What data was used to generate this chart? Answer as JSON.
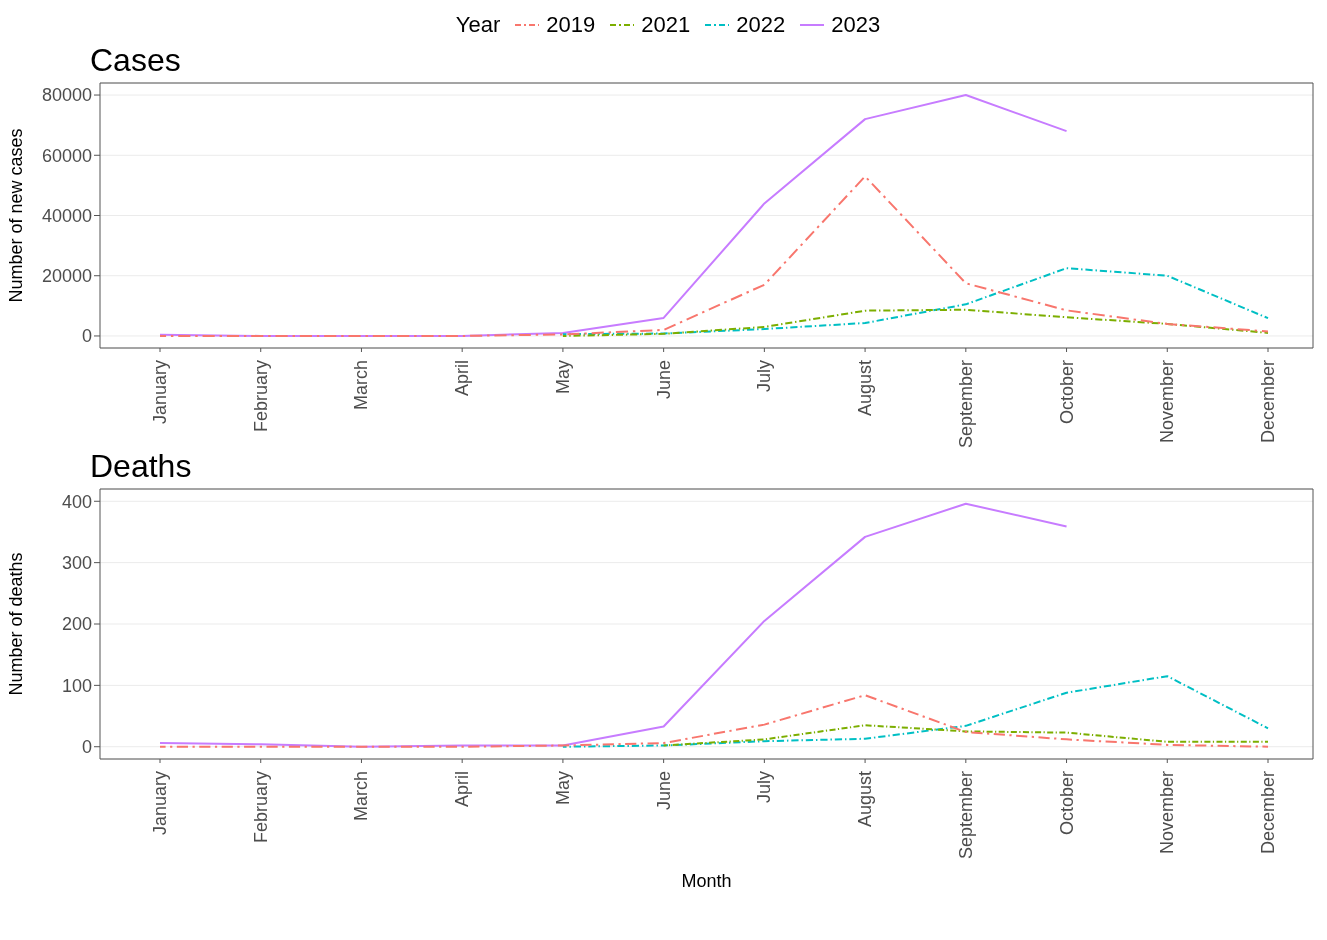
{
  "chart_data": [
    {
      "type": "line",
      "title": "Cases",
      "ylabel": "Number of new cases",
      "legend_title": "Year",
      "legend": "top",
      "categories": [
        "January",
        "February",
        "March",
        "April",
        "May",
        "June",
        "July",
        "August",
        "September",
        "October",
        "November",
        "December"
      ],
      "ylim": [
        -4000,
        84000
      ],
      "yticks": [
        0,
        20000,
        40000,
        60000,
        80000
      ],
      "grid": "y",
      "series": [
        {
          "name": "2019",
          "color": "#f8766d",
          "line_style": "dashed",
          "values": [
            0,
            0,
            0,
            0,
            500,
            2000,
            17000,
            53000,
            17500,
            8500,
            4000,
            1500
          ]
        },
        {
          "name": "2021",
          "color": "#7cae00",
          "line_style": "dashed",
          "values": [
            null,
            null,
            null,
            null,
            0,
            700,
            3000,
            8400,
            8700,
            6200,
            4000,
            1000
          ]
        },
        {
          "name": "2022",
          "color": "#00bfc4",
          "line_style": "dashed",
          "values": [
            null,
            null,
            null,
            null,
            600,
            800,
            2300,
            4300,
            10500,
            22500,
            20000,
            5900
          ]
        },
        {
          "name": "2023",
          "color": "#c77cff",
          "line_style": "solid",
          "values": [
            400,
            0,
            0,
            0,
            1000,
            6000,
            44000,
            72000,
            80000,
            68000,
            null,
            null
          ]
        }
      ]
    },
    {
      "type": "line",
      "title": "Deaths",
      "ylabel": "Number of deaths",
      "xlabel": "Month",
      "categories": [
        "January",
        "February",
        "March",
        "April",
        "May",
        "June",
        "July",
        "August",
        "September",
        "October",
        "November",
        "December"
      ],
      "ylim": [
        -20,
        420
      ],
      "yticks": [
        0,
        100,
        200,
        300,
        400
      ],
      "grid": "y",
      "series": [
        {
          "name": "2019",
          "color": "#f8766d",
          "line_style": "dashed",
          "values": [
            0,
            0,
            0,
            0,
            2,
            6,
            36,
            84,
            24,
            12,
            3,
            0
          ]
        },
        {
          "name": "2021",
          "color": "#7cae00",
          "line_style": "dashed",
          "values": [
            null,
            null,
            null,
            null,
            null,
            2,
            12,
            35,
            25,
            23,
            8,
            8
          ]
        },
        {
          "name": "2022",
          "color": "#00bfc4",
          "line_style": "dashed",
          "values": [
            null,
            null,
            null,
            null,
            0,
            2,
            9,
            13,
            34,
            88,
            115,
            30
          ]
        },
        {
          "name": "2023",
          "color": "#c77cff",
          "line_style": "solid",
          "values": [
            6,
            4,
            0,
            2,
            2,
            33,
            205,
            342,
            396,
            359,
            null,
            null
          ]
        }
      ]
    }
  ]
}
